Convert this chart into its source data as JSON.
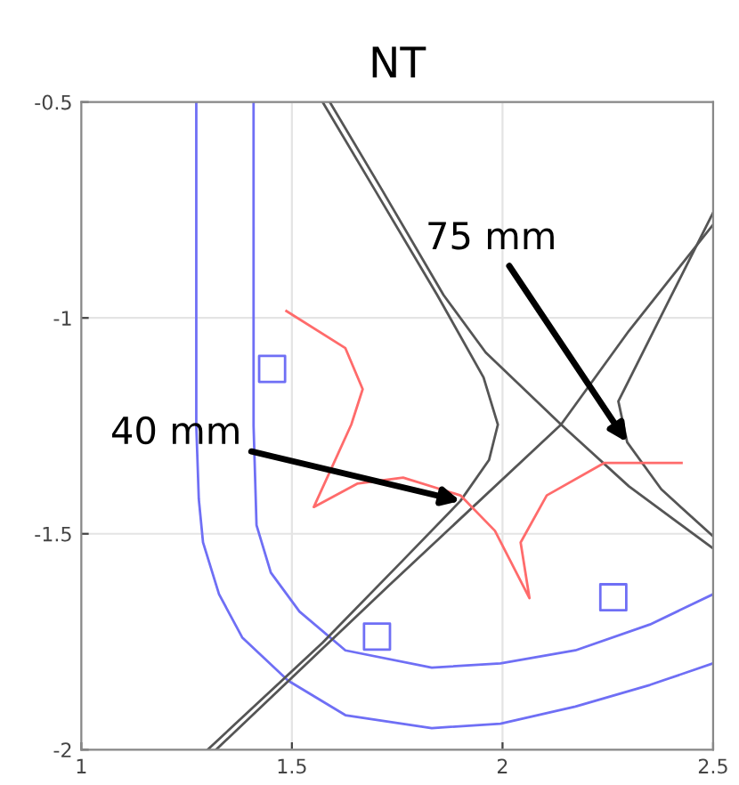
{
  "chart_data": {
    "type": "line",
    "title": "NT",
    "xlim": [
      1,
      2.5
    ],
    "ylim": [
      -2,
      -0.5
    ],
    "xticks": [
      1,
      1.5,
      2,
      2.5
    ],
    "yticks": [
      -2,
      -1.5,
      -1,
      -0.5
    ],
    "grid": true,
    "marker": "none",
    "series": [
      {
        "color": "#6f6ff5",
        "x": [
          1.273,
          1.273,
          1.279,
          1.289,
          1.327,
          1.382,
          1.491,
          1.627,
          1.832,
          1.995,
          2.173,
          2.35,
          2.5
        ],
        "values": [
          -0.5,
          -1.25,
          -1.42,
          -1.52,
          -1.64,
          -1.74,
          -1.84,
          -1.92,
          -1.95,
          -1.94,
          -1.9,
          -1.85,
          -1.8
        ]
      },
      {
        "color": "#6f6ff5",
        "x": [
          1.409,
          1.409,
          1.416,
          1.45,
          1.518,
          1.627,
          1.832,
          1.995,
          2.173,
          2.35,
          2.5
        ],
        "values": [
          -0.5,
          -1.25,
          -1.48,
          -1.59,
          -1.68,
          -1.77,
          -1.81,
          -1.8,
          -1.77,
          -1.71,
          -1.64
        ]
      },
      {
        "color": "#555555",
        "x": [
          1.573,
          1.696,
          1.845,
          1.955,
          1.989,
          1.968,
          1.9,
          1.764,
          1.573,
          1.3
        ],
        "values": [
          -0.5,
          -0.702,
          -0.947,
          -1.138,
          -1.247,
          -1.329,
          -1.424,
          -1.561,
          -1.752,
          -2.0
        ]
      },
      {
        "color": "#555555",
        "x": [
          1.59,
          1.713,
          1.86,
          1.96,
          2.139,
          2.3,
          2.5
        ],
        "values": [
          -0.5,
          -0.702,
          -0.947,
          -1.08,
          -1.247,
          -1.39,
          -1.534
        ]
      },
      {
        "color": "#555555",
        "x": [
          1.32,
          1.73,
          2.139,
          2.3,
          2.5
        ],
        "values": [
          -2.0,
          -1.62,
          -1.247,
          -1.03,
          -0.784
        ]
      },
      {
        "color": "#555555",
        "x": [
          2.5,
          2.4,
          2.275,
          2.296,
          2.377,
          2.5
        ],
        "values": [
          -0.756,
          -0.95,
          -1.193,
          -1.288,
          -1.397,
          -1.506
        ]
      },
      {
        "color": "#ff6b6b",
        "x": [
          1.487,
          1.627,
          1.668,
          1.641,
          1.552,
          1.655,
          1.764,
          1.9,
          1.982,
          2.064,
          2.043,
          2.105,
          2.241,
          2.425
        ],
        "values": [
          -0.984,
          -1.07,
          -1.165,
          -1.247,
          -1.438,
          -1.384,
          -1.37,
          -1.411,
          -1.493,
          -1.649,
          -1.52,
          -1.411,
          -1.336,
          -1.336
        ]
      },
      {
        "type": "scatter",
        "marker": "square",
        "color": "#6f6ff5",
        "x": [
          1.453,
          1.702,
          2.263
        ],
        "values": [
          -1.118,
          -1.738,
          -1.647
        ]
      }
    ],
    "annotations": [
      {
        "text": "40 mm",
        "x": 1.9,
        "y": -1.424
      },
      {
        "text": "75 mm",
        "x": 2.296,
        "y": -1.288
      }
    ]
  }
}
